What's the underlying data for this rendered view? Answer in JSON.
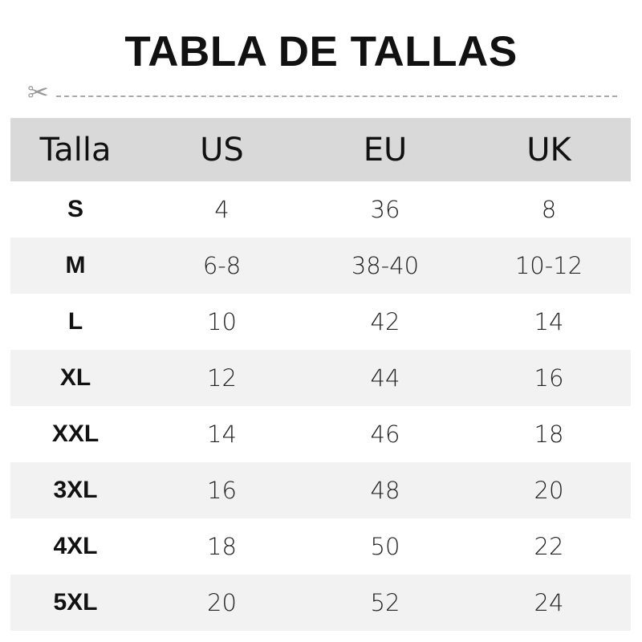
{
  "title": "TABLA DE TALLAS",
  "cut_icon": "scissors-icon",
  "colors": {
    "header_bg": "#d9d9d9",
    "alt_row_bg": "#f2f2f2"
  },
  "table": {
    "headers": [
      "Talla",
      "US",
      "EU",
      "UK"
    ],
    "rows": [
      [
        "S",
        "4",
        "36",
        "8"
      ],
      [
        "M",
        "6-8",
        "38-40",
        "10-12"
      ],
      [
        "L",
        "10",
        "42",
        "14"
      ],
      [
        "XL",
        "12",
        "44",
        "16"
      ],
      [
        "XXL",
        "14",
        "46",
        "18"
      ],
      [
        "3XL",
        "16",
        "48",
        "20"
      ],
      [
        "4XL",
        "18",
        "50",
        "22"
      ],
      [
        "5XL",
        "20",
        "52",
        "24"
      ]
    ]
  }
}
